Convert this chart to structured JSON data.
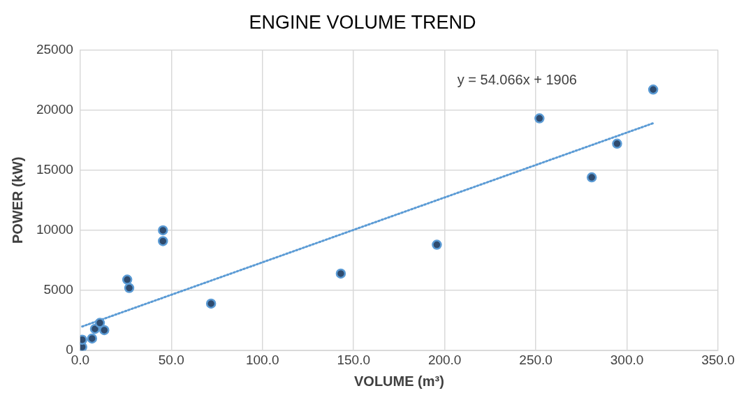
{
  "chart_data": {
    "type": "scatter",
    "title": "ENGINE VOLUME TREND",
    "xlabel": "VOLUME (m³)",
    "ylabel": "POWER (kW)",
    "series": [
      {
        "color": "#2f4b6e",
        "x": [
          1.1,
          1.1,
          6.5,
          8.1,
          10.8,
          13.2,
          25.8,
          26.9,
          45.4,
          45.4,
          71.8,
          143,
          195.7,
          252,
          280.7,
          294.6,
          314.4
        ],
        "values": [
          300,
          900,
          1000,
          1800,
          2300,
          1700,
          5900,
          5200,
          10000,
          9100,
          3900,
          6400,
          8800,
          19300,
          14400,
          17200,
          21700
        ]
      },
      {
        "type": "line",
        "color": "#5b9bd5",
        "line_style": "dotted",
        "marker": "none",
        "x": [
          1.1,
          314.4
        ],
        "values": [
          2000,
          18900
        ]
      }
    ],
    "annotations": [
      "y = 54.066x + 1906"
    ],
    "marker": "circle",
    "grid": true,
    "legend": false,
    "xlim": [
      0,
      350
    ],
    "xticks": [
      {
        "value": 0,
        "label": "0.0"
      },
      {
        "value": 50,
        "label": "50.0"
      },
      {
        "value": 100,
        "label": "100.0"
      },
      {
        "value": 150,
        "label": "150.0"
      },
      {
        "value": 200,
        "label": "200.0"
      },
      {
        "value": 250,
        "label": "250.0"
      },
      {
        "value": 300,
        "label": "300.0"
      },
      {
        "value": 350,
        "label": "350.0"
      }
    ],
    "ylim": [
      0,
      25000
    ],
    "yticks": [
      0,
      5000,
      10000,
      15000,
      20000,
      25000
    ]
  }
}
